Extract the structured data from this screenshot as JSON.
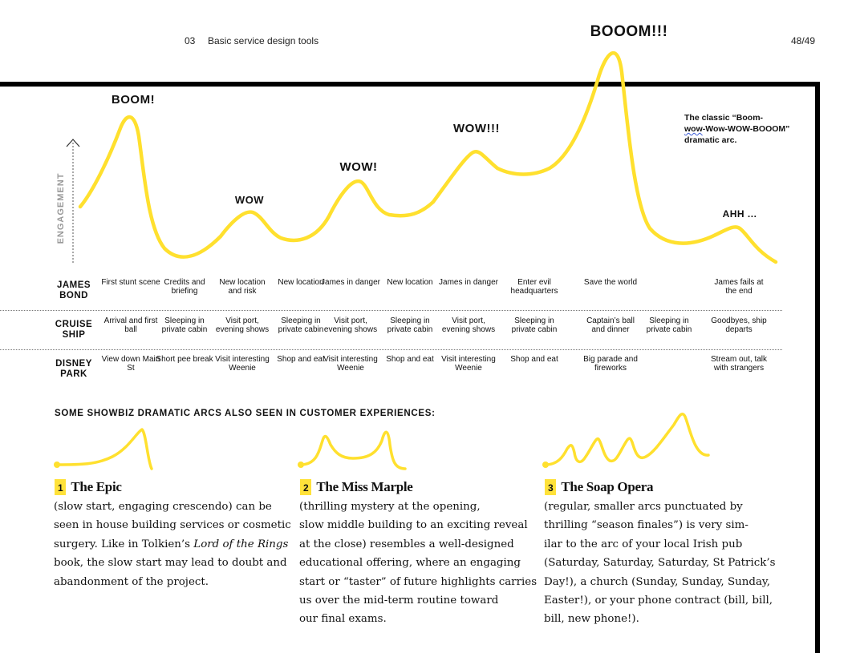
{
  "header": {
    "chapter_num": "03",
    "chapter_title": "Basic service design tools",
    "page": "48/49"
  },
  "chart": {
    "axis_label": "ENGAGEMENT",
    "peaks": [
      "BOOM!",
      "WOW",
      "WOW!",
      "WOW!!!",
      "BOOOM!!!",
      "AHH ..."
    ],
    "note": {
      "pre": "The classic “Boom-",
      "squiggle": "wow",
      "post": "-Wow-WOW-BOOOM” dramatic arc."
    },
    "accent_color": "#FFE02E"
  },
  "rows": [
    {
      "label": "JAMES BOND",
      "cells": [
        "First stunt scene",
        "Credits and briefing",
        "New location and risk",
        "New location",
        "James in danger",
        "New location",
        "James in danger",
        "Enter evil headquarters",
        "Save the world",
        "",
        "James fails  at the end"
      ]
    },
    {
      "label": "CRUISE SHIP",
      "cells": [
        "Arrival and first ball",
        "Sleeping in private cabin",
        "Visit port, evening shows",
        "Sleeping in private cabin",
        "Visit port, evening shows",
        "Sleeping in private cabin",
        "Visit port, evening shows",
        "Sleeping in private cabin",
        "Captain’s ball and dinner",
        "Sleeping in private cabin",
        "Goodbyes, ship departs"
      ]
    },
    {
      "label": "DISNEY PARK",
      "cells": [
        "View down Main St",
        "Short pee break",
        "Visit interesting Weenie",
        "Shop and eat",
        "Visit interesting Weenie",
        "Shop and eat",
        "Visit interesting Weenie",
        "Shop and eat",
        "Big parade and fireworks",
        "",
        "Stream out, talk with strangers"
      ]
    }
  ],
  "section_title": "SOME SHOWBIZ DRAMATIC ARCS ALSO SEEN IN CUSTOMER EXPERIENCES:",
  "arcs": [
    {
      "num": "1",
      "title": "The Epic",
      "lines": [
        "(slow start, engaging crescendo) can be",
        "seen in house building services or cosmetic",
        "surgery. Like in Tolkien’s ",
        "Lord of the Rings",
        "book, the slow start may lead to doubt and",
        "abandonment of the project."
      ]
    },
    {
      "num": "2",
      "title": "The Miss Marple",
      "lines": [
        "(thrilling mystery at the opening,",
        "slow middle building to an exciting reveal",
        "at the close) resembles a well-designed",
        "educational offering, where an engaging",
        "start or “taster” of future highlights carries",
        "us over the mid-term routine toward",
        "our final exams."
      ]
    },
    {
      "num": "3",
      "title": "The Soap Opera",
      "lines": [
        "(regular, smaller arcs punctuated by",
        "thrilling “season finales”) is very sim-",
        "ilar to the arc of your local Irish pub",
        "(Saturday, Saturday, Saturday, St Patrick’s",
        "Day!), a church (Sunday, Sunday, Sunday,",
        "Easter!), or your phone contract (bill, bill,",
        "bill, new phone!)."
      ]
    }
  ]
}
